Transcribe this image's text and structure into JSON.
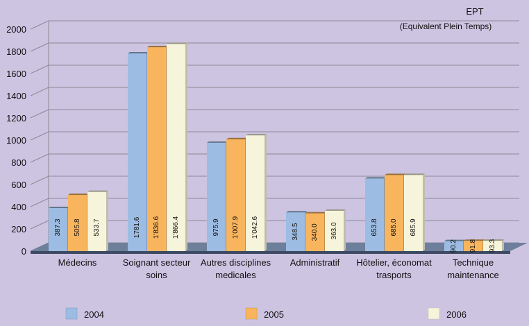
{
  "chart_data": {
    "type": "bar",
    "unit_label": "EPT",
    "unit_caption": "(Equivalent Plein Temps)",
    "categories": [
      [
        "Médecins"
      ],
      [
        "Soignant secteur",
        "soins"
      ],
      [
        "Autres disciplines",
        "medicales"
      ],
      [
        "Administratif"
      ],
      [
        "Hôtelier, économat",
        "trasports"
      ],
      [
        "Technique",
        "maintenance"
      ]
    ],
    "series": [
      {
        "name": "2004",
        "color": "#9dbce3",
        "values": [
          387.3,
          1781.6,
          975.9,
          348.5,
          653.8,
          90.2
        ],
        "labels": [
          "387.3",
          "1781.6",
          "975.9",
          "348.5",
          "653.8",
          "90.2"
        ]
      },
      {
        "name": "2005",
        "color": "#f9b55d",
        "values": [
          505.8,
          1836.6,
          1007.9,
          340.0,
          685.0,
          91.8
        ],
        "labels": [
          "505.8",
          "1'836.6",
          "1'007.9",
          "340.0",
          "685.0",
          "91.8"
        ]
      },
      {
        "name": "2006",
        "color": "#f6f4da",
        "values": [
          533.7,
          1866.4,
          1042.6,
          363.0,
          685.9,
          93.3
        ],
        "labels": [
          "533.7",
          "1'866.4",
          "1'042.6",
          "363.0",
          "685.9",
          "93.3"
        ]
      }
    ],
    "ylim": [
      0,
      2000
    ],
    "yticks": [
      0,
      200,
      400,
      600,
      800,
      1000,
      1200,
      1400,
      1600,
      1800,
      2000
    ],
    "grid": true,
    "legend_position": "bottom"
  }
}
